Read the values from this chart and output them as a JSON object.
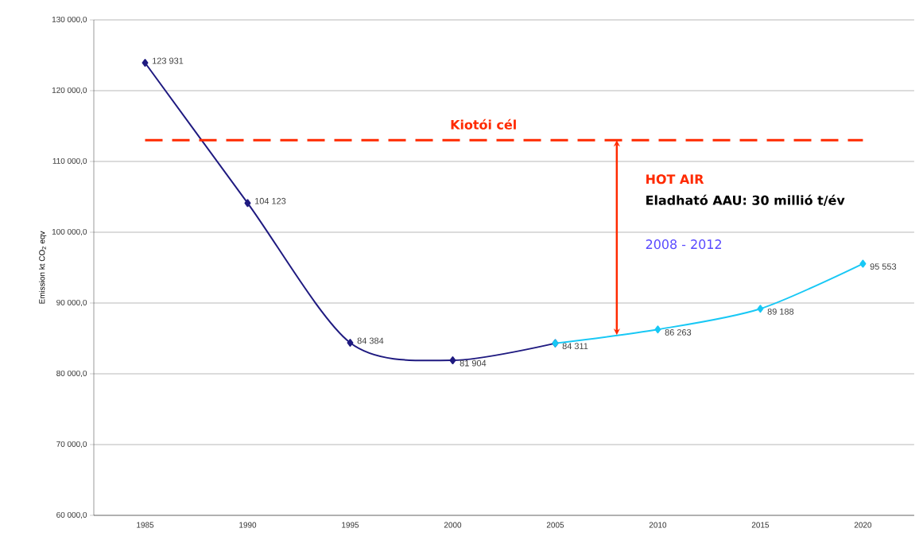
{
  "chart_data": {
    "type": "line",
    "categories": [
      "1985",
      "1990",
      "1995",
      "2000",
      "2005",
      "2010",
      "2015",
      "2020"
    ],
    "ylabel": "Emission kt CO$_{2}$ eqv",
    "series": [
      {
        "color": "#1f1a80",
        "values": [
          123931,
          104123,
          84384,
          81904,
          84311,
          null,
          null,
          null
        ],
        "value_labels": [
          "123 931",
          "104 123",
          "84 384",
          "81 904",
          "84 311",
          null,
          null,
          null
        ]
      },
      {
        "color": "#18c8f5",
        "values": [
          null,
          null,
          null,
          null,
          84311,
          86263,
          89188,
          95553
        ],
        "value_labels": [
          null,
          null,
          null,
          null,
          null,
          "86 263",
          "89 188",
          "95 553"
        ]
      }
    ],
    "ylim": [
      60000,
      130000
    ],
    "yticks": [
      {
        "value": 60000,
        "label": "60 000,0"
      },
      {
        "value": 70000,
        "label": "70 000,0"
      },
      {
        "value": 80000,
        "label": "80 000,0"
      },
      {
        "value": 90000,
        "label": "90 000,0"
      },
      {
        "value": 100000,
        "label": "100 000,0"
      },
      {
        "value": 110000,
        "label": "110 000,0"
      },
      {
        "value": 120000,
        "label": "120 000,0"
      },
      {
        "value": 130000,
        "label": "130 000,0"
      }
    ],
    "grid": "y",
    "marker": "diamond",
    "line_style": "solid",
    "ref_lines": [
      {
        "axis": "y",
        "value": 113000,
        "label": "Kiotói cél",
        "color": "#ff2a00",
        "line_style": "dashed"
      }
    ],
    "annotations": [
      "HOT AIR",
      "Eladható AAU: 30 millió t/év",
      "2008 - 2012"
    ]
  }
}
